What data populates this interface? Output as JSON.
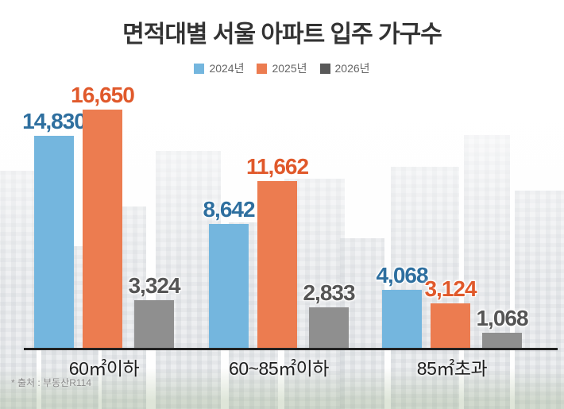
{
  "title": "면적대별 서울 아파트 입주 가구수",
  "source_note": "* 출처 : 부동산R114",
  "colors": {
    "title_text": "#333333",
    "axis_line": "#222222",
    "legend_text": "#666666",
    "category_text": "#1e1e1e",
    "source_text": "#8a8a8a"
  },
  "chart_data": {
    "type": "bar",
    "title": "면적대별 서울 아파트 입주 가구수",
    "categories": [
      "60㎡이하",
      "60~85㎡이하",
      "85㎡초과"
    ],
    "series": [
      {
        "name": "2024년",
        "bar_color": "#74b6de",
        "label_color": "#2e6f9f",
        "legend_color": "#74b6de",
        "values": [
          14830,
          8642,
          4068
        ]
      },
      {
        "name": "2025년",
        "bar_color": "#ec7c50",
        "label_color": "#e0592b",
        "legend_color": "#ec7c50",
        "values": [
          16650,
          11662,
          3124
        ]
      },
      {
        "name": "2026년",
        "bar_color": "#8f8f8f",
        "label_color": "#555555",
        "legend_color": "#595959",
        "values": [
          3324,
          2833,
          1068
        ]
      }
    ],
    "ylim": [
      0,
      16650
    ],
    "grid": false,
    "legend_position": "top-center",
    "value_labels": "above-bars",
    "xlabel": "",
    "ylabel": ""
  }
}
